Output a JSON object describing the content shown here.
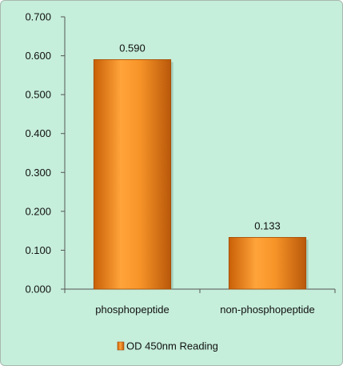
{
  "chart_data": {
    "type": "bar",
    "categories": [
      "phosphopeptide",
      "non-phosphopeptide"
    ],
    "series": [
      {
        "name": "OD 450nm Reading",
        "values": [
          0.59,
          0.133
        ]
      }
    ],
    "data_labels": [
      "0.590",
      "0.133"
    ],
    "yticks": [
      "0.000",
      "0.100",
      "0.200",
      "0.300",
      "0.400",
      "0.500",
      "0.600",
      "0.700"
    ],
    "ylim": [
      0,
      0.7
    ],
    "title": "",
    "xlabel": "",
    "ylabel": "",
    "grid": false,
    "legend": "bottom"
  },
  "colors": {
    "background": "#c5eedb",
    "bar": "#f08a1e",
    "bar_highlight": "#ffb24a",
    "bar_shadow": "#c95f06",
    "axis": "#555555"
  }
}
